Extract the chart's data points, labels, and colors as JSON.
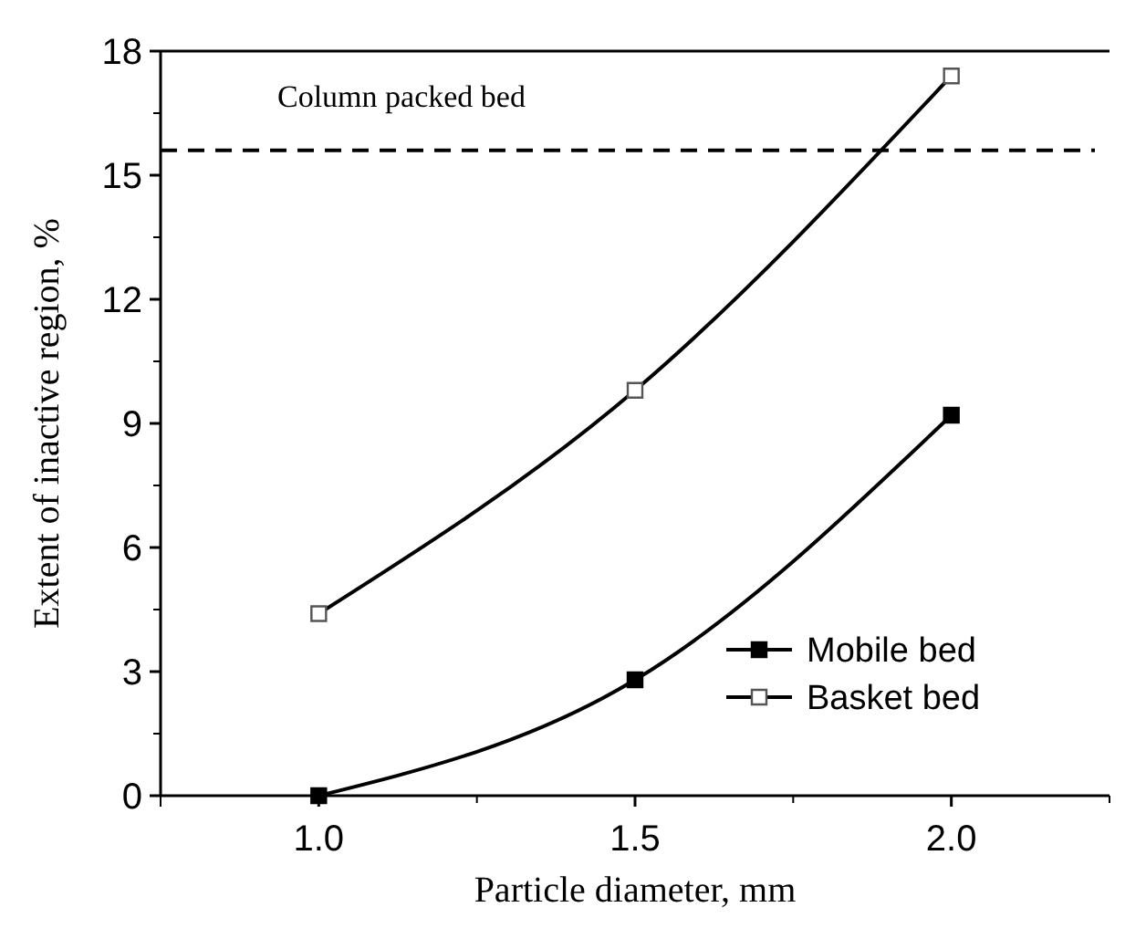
{
  "chart_data": {
    "type": "line",
    "xlabel": "Particle diameter, mm",
    "ylabel": "Extent of inactive region, %",
    "x": [
      1.0,
      1.5,
      2.0
    ],
    "series": [
      {
        "name": "Mobile bed",
        "color": "#000000",
        "values": [
          0,
          2.8,
          9.2
        ]
      },
      {
        "name": "Basket bed",
        "color": "#000000",
        "values": [
          4.4,
          9.8,
          17.4
        ],
        "colors": [
          "#ffffff",
          "#ffffff",
          "#ffffff"
        ]
      }
    ],
    "xlim": [
      0.75,
      2.25
    ],
    "xticks": [
      {
        "value": 1,
        "label": "1.0"
      },
      1.5,
      {
        "value": 2,
        "label": "2.0"
      }
    ],
    "ylim": [
      0,
      18
    ],
    "yticks": [
      0,
      3,
      6,
      9,
      12,
      15,
      18
    ],
    "ref_lines": [
      {
        "axis": "y",
        "value": 15.6,
        "label": "Column packed bed",
        "line_style": "dashed",
        "color": "#000000"
      }
    ],
    "marker": "square",
    "line_style": "solid",
    "legend": "bottom right",
    "grid": false
  }
}
